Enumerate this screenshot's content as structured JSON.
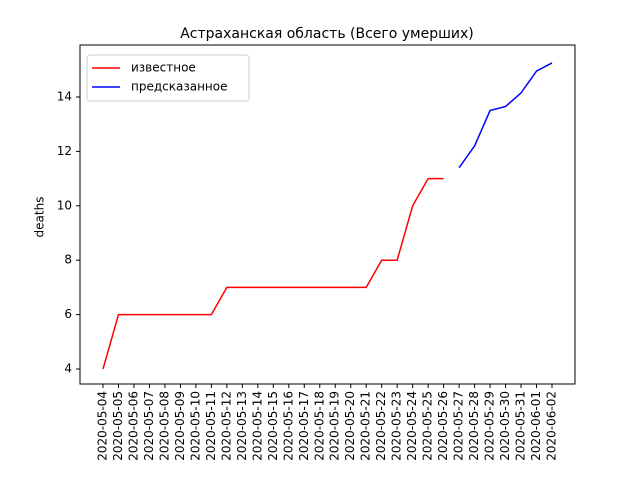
{
  "chart_data": {
    "type": "line",
    "title": "Астраханская область (Всего умерших)",
    "ylabel": "deaths",
    "categories": [
      "2020-05-04",
      "2020-05-05",
      "2020-05-06",
      "2020-05-07",
      "2020-05-08",
      "2020-05-09",
      "2020-05-10",
      "2020-05-11",
      "2020-05-12",
      "2020-05-13",
      "2020-05-14",
      "2020-05-15",
      "2020-05-16",
      "2020-05-17",
      "2020-05-18",
      "2020-05-19",
      "2020-05-20",
      "2020-05-21",
      "2020-05-22",
      "2020-05-23",
      "2020-05-24",
      "2020-05-25",
      "2020-05-26",
      "2020-05-27",
      "2020-05-28",
      "2020-05-29",
      "2020-05-30",
      "2020-05-31",
      "2020-06-01",
      "2020-06-02"
    ],
    "series": [
      {
        "name": "известное",
        "color": "#ff0000",
        "values": [
          4,
          6,
          6,
          6,
          6,
          6,
          6,
          6,
          7,
          7,
          7,
          7,
          7,
          7,
          7,
          7,
          7,
          7,
          8,
          8,
          10,
          11,
          11,
          null,
          null,
          null,
          null,
          null,
          null,
          null
        ]
      },
      {
        "name": "предсказанное",
        "color": "#0000ff",
        "values": [
          null,
          null,
          null,
          null,
          null,
          null,
          null,
          null,
          null,
          null,
          null,
          null,
          null,
          null,
          null,
          null,
          null,
          null,
          null,
          null,
          null,
          null,
          null,
          11.4,
          12.2,
          13.5,
          13.65,
          14.15,
          14.95,
          15.25
        ]
      }
    ],
    "ylim": [
      3.45,
      15.91
    ],
    "yticks": [
      4,
      6,
      8,
      10,
      12,
      14
    ],
    "legend": "upper left",
    "grid": false
  }
}
